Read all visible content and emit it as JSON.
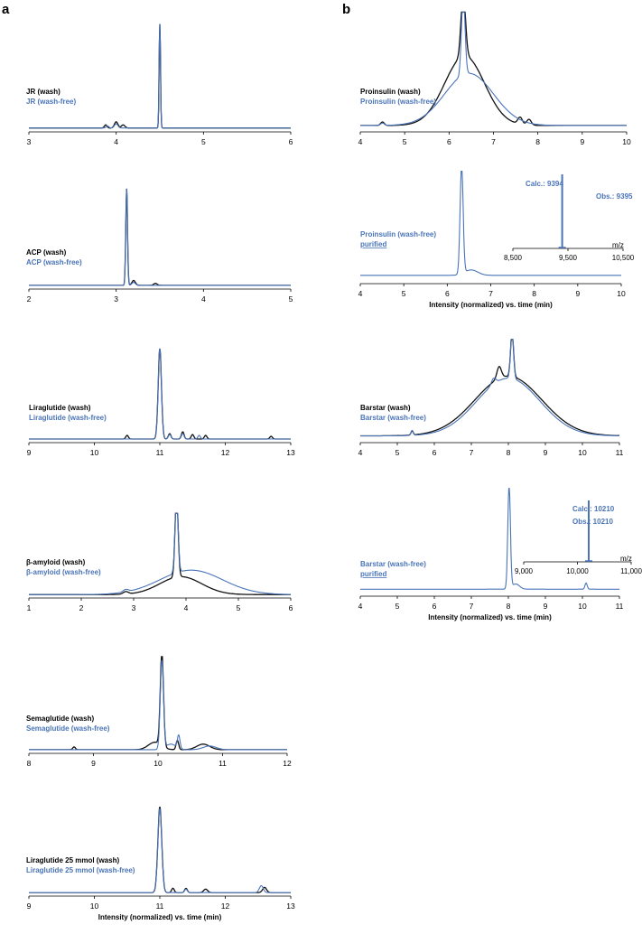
{
  "panels": {
    "a": "a",
    "b": "b"
  },
  "colors": {
    "wash": "#111111",
    "wash_free": "#4a74b8"
  },
  "chart_data": [
    {
      "type": "line",
      "id": "jr",
      "xlim": [
        3,
        6
      ],
      "ticks": [
        3,
        4,
        5,
        6
      ],
      "legend": [
        "JR (wash)",
        "JR (wash-free)"
      ],
      "xlabel": "",
      "series": [
        {
          "name": "JR (wash)",
          "peaks": [
            [
              4.5,
              1.0,
              0.008
            ],
            [
              4.0,
              0.06,
              0.02
            ],
            [
              4.08,
              0.03,
              0.02
            ],
            [
              3.88,
              0.03,
              0.015
            ]
          ],
          "base": 0.02
        },
        {
          "name": "JR (wash-free)",
          "peaks": [
            [
              4.5,
              1.0,
              0.008
            ],
            [
              4.0,
              0.04,
              0.02
            ],
            [
              3.9,
              0.02,
              0.015
            ]
          ],
          "base": 0.02
        }
      ]
    },
    {
      "type": "line",
      "id": "acp",
      "xlim": [
        2,
        5
      ],
      "ticks": [
        2,
        3,
        4,
        5
      ],
      "legend": [
        "ACP (wash)",
        "ACP (wash-free)"
      ],
      "xlabel": "",
      "series": [
        {
          "name": "ACP (wash)",
          "peaks": [
            [
              3.12,
              1.0,
              0.01
            ],
            [
              3.2,
              0.05,
              0.02
            ],
            [
              3.45,
              0.02,
              0.02
            ]
          ],
          "base": 0.02
        },
        {
          "name": "ACP (wash-free)",
          "peaks": [
            [
              3.12,
              1.0,
              0.01
            ],
            [
              3.2,
              0.03,
              0.02
            ]
          ],
          "base": 0.02
        }
      ]
    },
    {
      "type": "line",
      "id": "liraglutide",
      "xlim": [
        9,
        13
      ],
      "ticks": [
        9,
        10,
        11,
        12,
        13
      ],
      "legend": [
        "Liraglutide (wash)",
        "Liraglutide (wash-free)"
      ],
      "xlabel": "",
      "series": [
        {
          "name": "Liraglutide (wash)",
          "peaks": [
            [
              11.0,
              1.0,
              0.025
            ],
            [
              10.5,
              0.04,
              0.02
            ],
            [
              11.15,
              0.06,
              0.02
            ],
            [
              11.35,
              0.08,
              0.02
            ],
            [
              11.5,
              0.05,
              0.02
            ],
            [
              11.7,
              0.04,
              0.02
            ],
            [
              12.7,
              0.03,
              0.02
            ]
          ],
          "base": 0.02
        },
        {
          "name": "Liraglutide (wash-free)",
          "peaks": [
            [
              11.0,
              1.0,
              0.025
            ],
            [
              11.15,
              0.05,
              0.02
            ],
            [
              11.35,
              0.06,
              0.02
            ],
            [
              11.6,
              0.04,
              0.02
            ]
          ],
          "base": 0.02
        }
      ]
    },
    {
      "type": "line",
      "id": "beta-amyloid",
      "xlim": [
        1,
        6
      ],
      "ticks": [
        1,
        2,
        3,
        4,
        5,
        6
      ],
      "legend": [
        "β-amyloid (wash)",
        "β-amyloid (wash-free)"
      ],
      "xlabel": "",
      "series": [
        {
          "name": "β-amyloid (wash)",
          "peaks": [
            [
              3.82,
              1.0,
              0.03
            ],
            [
              3.9,
              0.22,
              0.4
            ],
            [
              2.85,
              0.03,
              0.05
            ]
          ],
          "base": 0.02
        },
        {
          "name": "β-amyloid (wash-free)",
          "peaks": [
            [
              3.82,
              0.95,
              0.03
            ],
            [
              4.1,
              0.3,
              0.6
            ],
            [
              2.85,
              0.03,
              0.05
            ]
          ],
          "base": 0.02
        }
      ]
    },
    {
      "type": "line",
      "id": "semaglutide",
      "xlim": [
        8,
        12
      ],
      "ticks": [
        8,
        9,
        10,
        11,
        12
      ],
      "legend": [
        "Semaglutide (wash)",
        "Semaglutide (wash-free)"
      ],
      "xlabel": "",
      "series": [
        {
          "name": "Semaglutide (wash)",
          "peaks": [
            [
              10.06,
              1.0,
              0.025
            ],
            [
              10.3,
              0.1,
              0.02
            ],
            [
              9.95,
              0.08,
              0.1
            ],
            [
              10.7,
              0.06,
              0.1
            ],
            [
              8.7,
              0.03,
              0.02
            ]
          ],
          "base": 0.02
        },
        {
          "name": "Semaglutide (wash-free)",
          "peaks": [
            [
              10.06,
              0.95,
              0.025
            ],
            [
              10.32,
              0.14,
              0.02
            ],
            [
              10.2,
              0.06,
              0.08
            ],
            [
              10.8,
              0.04,
              0.1
            ]
          ],
          "base": 0.02
        }
      ]
    },
    {
      "type": "line",
      "id": "liraglutide-25",
      "xlim": [
        9,
        13
      ],
      "ticks": [
        9,
        10,
        11,
        12,
        13
      ],
      "legend": [
        "Liraglutide 25 mmol (wash)",
        "Liraglutide 25 mmol (wash-free)"
      ],
      "xlabel": "Intensity (normalized) vs. time (min)",
      "series": [
        {
          "name": "Liraglutide 25 mmol (wash)",
          "peaks": [
            [
              11.0,
              1.0,
              0.03
            ],
            [
              11.2,
              0.05,
              0.02
            ],
            [
              11.4,
              0.05,
              0.02
            ],
            [
              11.7,
              0.04,
              0.03
            ],
            [
              12.6,
              0.06,
              0.03
            ]
          ],
          "base": 0.02
        },
        {
          "name": "Liraglutide 25 mmol (wash-free)",
          "peaks": [
            [
              11.0,
              0.98,
              0.03
            ],
            [
              11.4,
              0.04,
              0.02
            ],
            [
              12.55,
              0.08,
              0.03
            ]
          ],
          "base": 0.02
        }
      ]
    },
    {
      "type": "line",
      "id": "proinsulin",
      "xlim": [
        4,
        10
      ],
      "ticks": [
        4,
        5,
        6,
        7,
        8,
        9,
        10
      ],
      "legend": [
        "Proinsulin (wash)",
        "Proinsulin (wash-free)"
      ],
      "xlabel": "",
      "series": [
        {
          "name": "Proinsulin (wash)",
          "peaks": [
            [
              6.32,
              0.55,
              0.05
            ],
            [
              6.35,
              0.6,
              0.45
            ],
            [
              7.6,
              0.06,
              0.05
            ],
            [
              7.8,
              0.05,
              0.05
            ],
            [
              4.5,
              0.03,
              0.04
            ]
          ],
          "base": 0.04
        },
        {
          "name": "Proinsulin (wash-free)",
          "peaks": [
            [
              6.32,
              0.7,
              0.04
            ],
            [
              6.45,
              0.45,
              0.55
            ],
            [
              4.5,
              0.02,
              0.04
            ]
          ],
          "base": 0.04
        }
      ]
    },
    {
      "type": "line",
      "id": "proinsulin-purified",
      "xlim": [
        4,
        10
      ],
      "ticks": [
        4,
        5,
        6,
        7,
        8,
        9,
        10
      ],
      "legend": [
        "Proinsulin (wash-free)",
        "purified"
      ],
      "xlabel": "Intensity (normalized) vs. time (min)",
      "series": [
        {
          "name": "Proinsulin (wash-free)",
          "peaks": [
            [
              6.33,
              1.0,
              0.035
            ],
            [
              6.55,
              0.05,
              0.15
            ]
          ],
          "base": 0.06
        }
      ],
      "inset": {
        "calc": "Calc.: 9394",
        "obs": "Obs.: 9395",
        "unit": "m/z",
        "xlim": [
          8500,
          10500
        ],
        "ticks": [
          8500,
          9500,
          10500
        ],
        "tick_labels": [
          "8,500",
          "9,500",
          "10,500"
        ],
        "peak": 9395
      }
    },
    {
      "type": "line",
      "id": "barstar",
      "xlim": [
        4,
        11
      ],
      "ticks": [
        4,
        5,
        6,
        7,
        8,
        9,
        10,
        11
      ],
      "legend": [
        "Barstar (wash)",
        "Barstar (wash-free)"
      ],
      "xlabel": "",
      "series": [
        {
          "name": "Barstar (wash)",
          "peaks": [
            [
              8.1,
              0.45,
              0.04
            ],
            [
              8.0,
              0.6,
              0.9
            ],
            [
              7.75,
              0.12,
              0.06
            ],
            [
              5.4,
              0.04,
              0.03
            ]
          ],
          "base": 0.05
        },
        {
          "name": "Barstar (wash-free)",
          "peaks": [
            [
              8.1,
              0.5,
              0.04
            ],
            [
              8.0,
              0.58,
              0.85
            ],
            [
              7.6,
              0.06,
              0.06
            ],
            [
              5.4,
              0.05,
              0.03
            ]
          ],
          "base": 0.05
        }
      ]
    },
    {
      "type": "line",
      "id": "barstar-purified",
      "xlim": [
        4,
        11
      ],
      "ticks": [
        4,
        5,
        6,
        7,
        8,
        9,
        10,
        11
      ],
      "legend": [
        "Barstar (wash-free)",
        "purified"
      ],
      "xlabel": "Intensity (normalized) vs. time (min)",
      "series": [
        {
          "name": "Barstar (wash-free)",
          "peaks": [
            [
              8.02,
              1.0,
              0.035
            ],
            [
              8.2,
              0.05,
              0.1
            ],
            [
              10.1,
              0.06,
              0.03
            ]
          ],
          "base": 0.05
        }
      ],
      "inset": {
        "calc": "Calc.: 10210",
        "obs": "Obs.: 10210",
        "unit": "m/z",
        "xlim": [
          9000,
          11000
        ],
        "ticks": [
          9000,
          10000,
          11000
        ],
        "tick_labels": [
          "9,000",
          "10,000",
          "11,000"
        ],
        "peak": 10210
      }
    }
  ]
}
